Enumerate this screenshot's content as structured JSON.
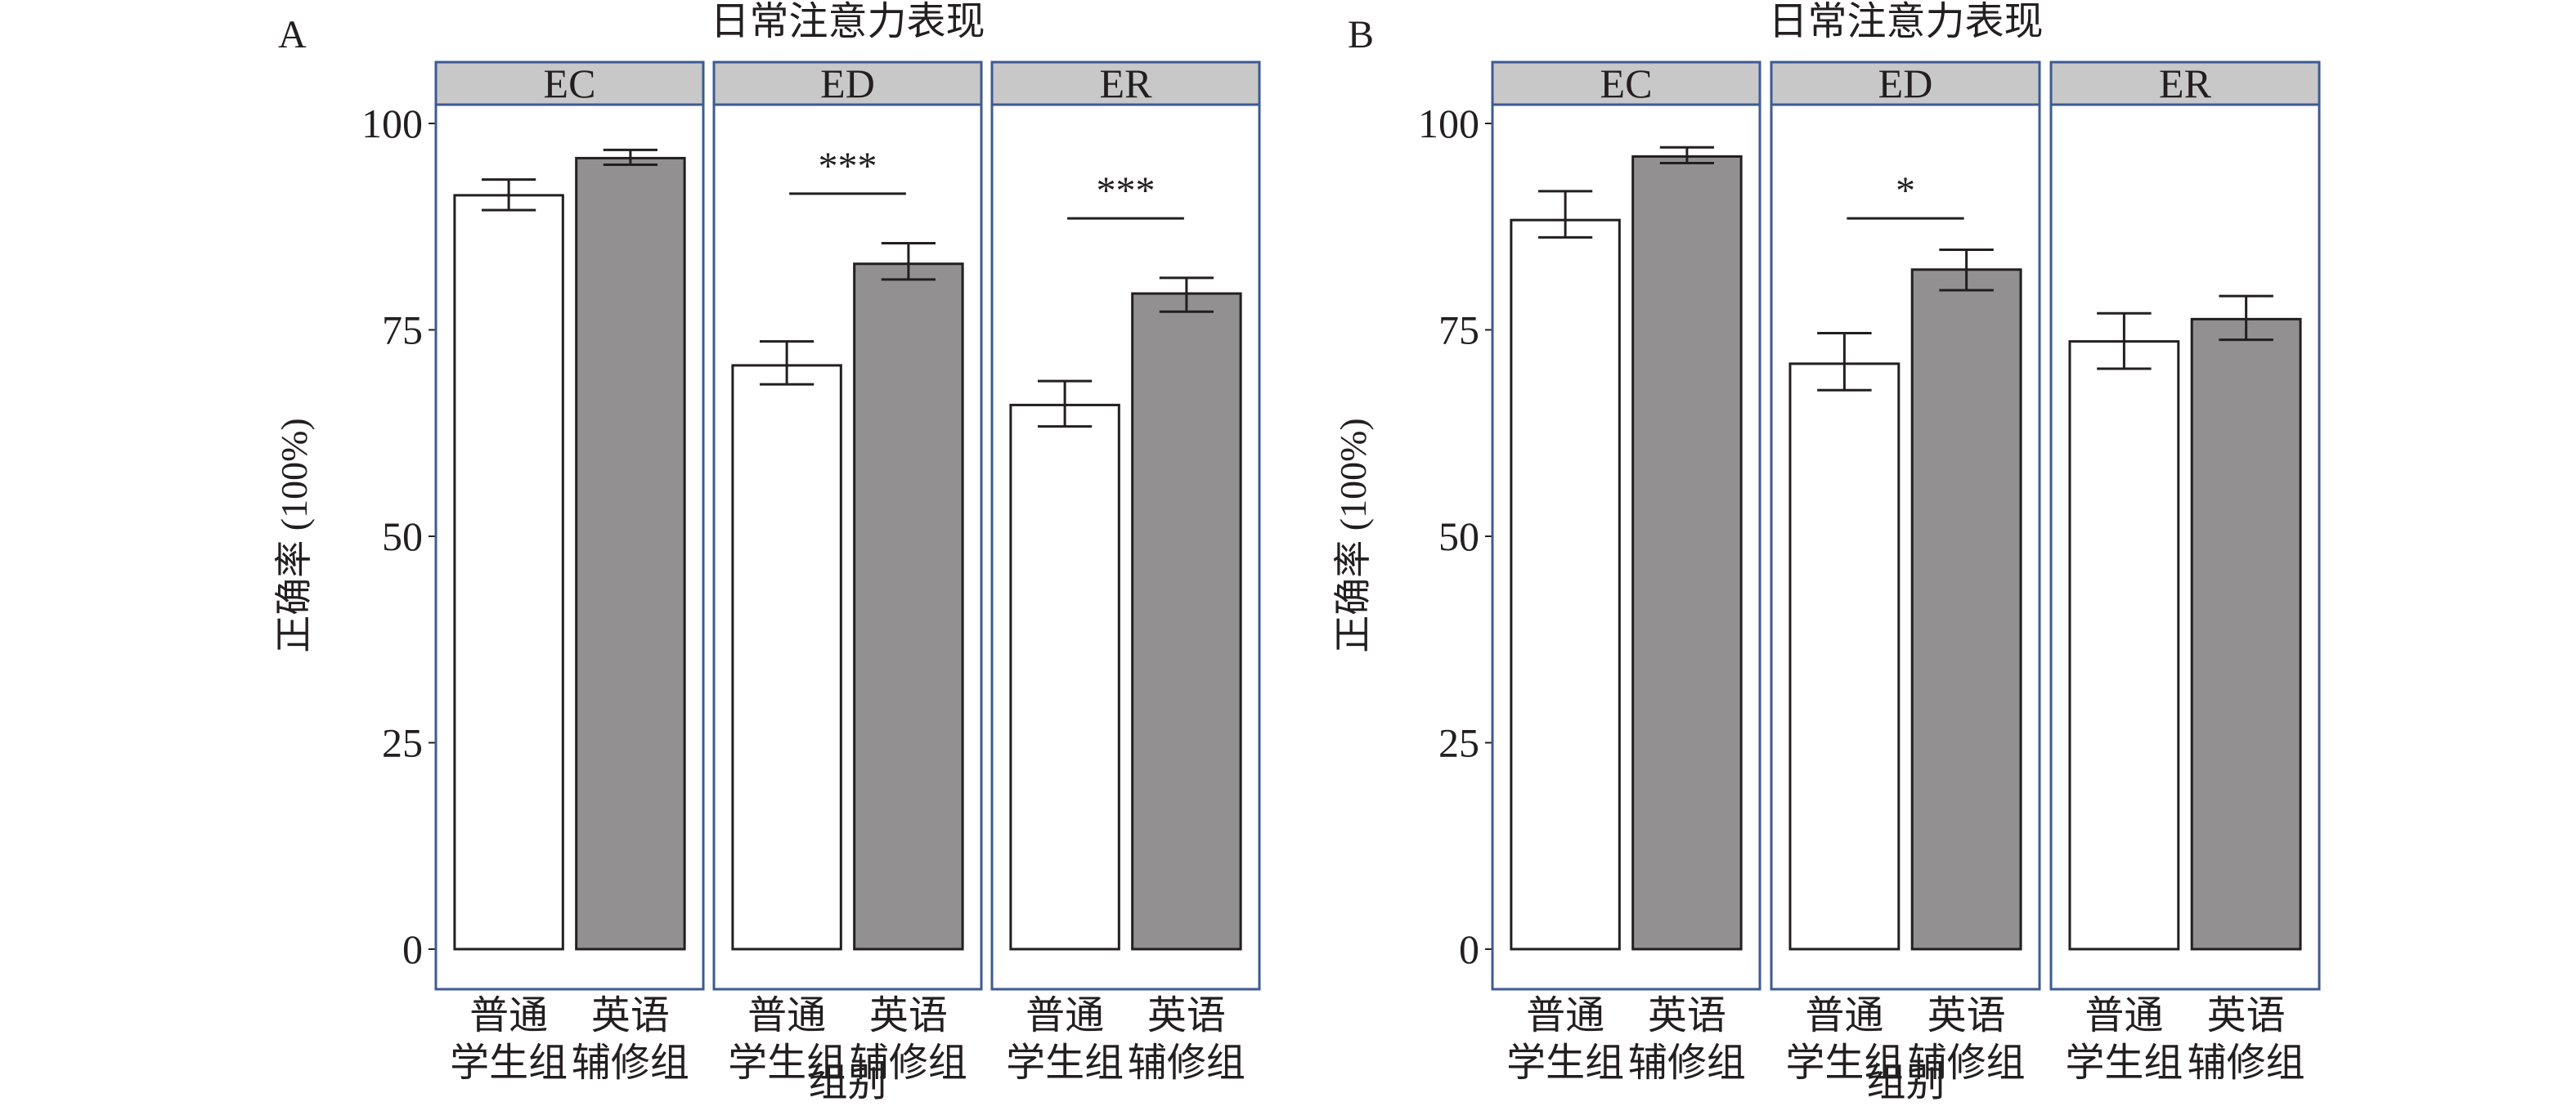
{
  "chart_data": [
    {
      "type": "bar",
      "panel_label": "A",
      "title": "日常注意力表现",
      "xlabel": "组别",
      "ylabel": "正确率 (100%)",
      "ylim": [
        0,
        100
      ],
      "yticks": [
        "0",
        "25",
        "50",
        "75",
        "100"
      ],
      "categories": [
        [
          "普通",
          "学生组"
        ],
        [
          "英语",
          "辅修组"
        ]
      ],
      "facets": [
        {
          "name": "EC",
          "values": [
            91.3,
            95.8
          ],
          "errors": [
            [
              89.5,
              93.2
            ],
            [
              95.0,
              96.8
            ]
          ],
          "significance": ""
        },
        {
          "name": "ED",
          "values": [
            70.7,
            83.0
          ],
          "errors": [
            [
              68.4,
              73.6
            ],
            [
              81.1,
              85.5
            ]
          ],
          "significance": "***"
        },
        {
          "name": "ER",
          "values": [
            65.9,
            79.4
          ],
          "errors": [
            [
              63.3,
              68.8
            ],
            [
              77.2,
              81.3
            ]
          ],
          "significance": "***"
        }
      ],
      "sig_y": [
        null,
        91.5,
        88.5
      ]
    },
    {
      "type": "bar",
      "panel_label": "B",
      "title": "日常注意力表现",
      "xlabel": "组别",
      "ylabel": "正确率 (100%)",
      "ylim": [
        0,
        100
      ],
      "yticks": [
        "0",
        "25",
        "50",
        "75",
        "100"
      ],
      "categories": [
        [
          "普通",
          "学生组"
        ],
        [
          "英语",
          "辅修组"
        ]
      ],
      "facets": [
        {
          "name": "EC",
          "values": [
            88.3,
            96.0
          ],
          "errors": [
            [
              86.2,
              91.8
            ],
            [
              95.2,
              97.1
            ]
          ],
          "significance": ""
        },
        {
          "name": "ED",
          "values": [
            70.9,
            82.3
          ],
          "errors": [
            [
              67.7,
              74.6
            ],
            [
              79.8,
              84.7
            ]
          ],
          "significance": "*"
        },
        {
          "name": "ER",
          "values": [
            73.6,
            76.3
          ],
          "errors": [
            [
              70.3,
              77.0
            ],
            [
              73.8,
              79.1
            ]
          ],
          "significance": ""
        }
      ],
      "sig_y": [
        null,
        88.5,
        null
      ]
    }
  ],
  "colors": {
    "bar_group1": "#ffffff",
    "bar_group2": "#929091",
    "strip": "#c8c8c8",
    "panel_border": "#3d5a94",
    "ink": "#231f20"
  }
}
